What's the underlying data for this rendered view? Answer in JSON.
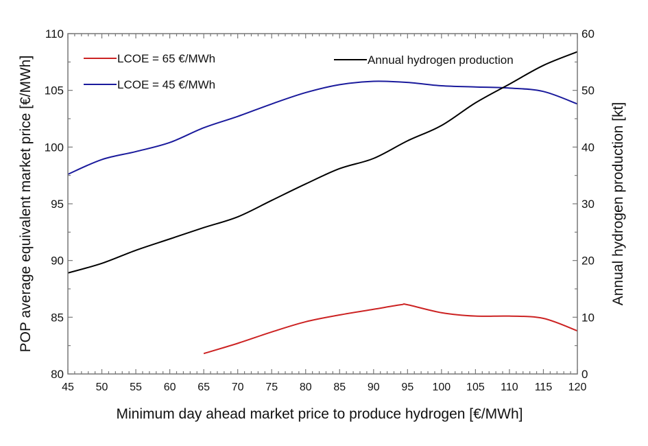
{
  "chart_data": {
    "type": "line",
    "title": "",
    "xlabel": "Minimum day ahead market price to produce hydrogen [€/MWh]",
    "ylabel": "POP average equivalent market price [€/MWh]",
    "y2label": "Annual hydrogen production [kt]",
    "xlim": [
      45,
      120
    ],
    "ylim": [
      80,
      110
    ],
    "y2lim": [
      0,
      60
    ],
    "xticks": [
      "45",
      "50",
      "55",
      "60",
      "65",
      "70",
      "75",
      "80",
      "85",
      "90",
      "95",
      "100",
      "105",
      "110",
      "115",
      "120"
    ],
    "yticks": [
      "80",
      "85",
      "90",
      "95",
      "100",
      "105",
      "110"
    ],
    "y2ticks": [
      "0",
      "10",
      "20",
      "30",
      "40",
      "50",
      "60"
    ],
    "grid": false,
    "legend_position": "top",
    "series": [
      {
        "name": "LCOE = 65 €/MWh",
        "axis": "left",
        "color": "#cc2222",
        "x": [
          65,
          70,
          75,
          80,
          85,
          90,
          94,
          95,
          100,
          105,
          110,
          115,
          120
        ],
        "y": [
          81.8,
          82.7,
          83.7,
          84.6,
          85.2,
          85.7,
          86.1,
          86.1,
          85.4,
          85.1,
          85.1,
          84.9,
          83.8
        ]
      },
      {
        "name": "LCOE = 45 €/MWh",
        "axis": "left",
        "color": "#1a1a9c",
        "x": [
          45,
          50,
          55,
          60,
          65,
          70,
          75,
          80,
          85,
          90,
          95,
          100,
          105,
          110,
          115,
          120
        ],
        "y": [
          97.6,
          98.9,
          99.6,
          100.4,
          101.7,
          102.7,
          103.8,
          104.8,
          105.5,
          105.8,
          105.7,
          105.4,
          105.3,
          105.2,
          104.9,
          103.8
        ]
      },
      {
        "name": "Annual hydrogen production",
        "axis": "right",
        "color": "#000000",
        "x": [
          45,
          50,
          55,
          60,
          65,
          70,
          75,
          80,
          85,
          90,
          95,
          100,
          105,
          110,
          115,
          120
        ],
        "y": [
          17.8,
          19.5,
          21.8,
          23.8,
          25.8,
          27.7,
          30.6,
          33.5,
          36.2,
          38.0,
          41.1,
          43.8,
          47.8,
          51.1,
          54.4,
          56.8
        ]
      }
    ]
  }
}
